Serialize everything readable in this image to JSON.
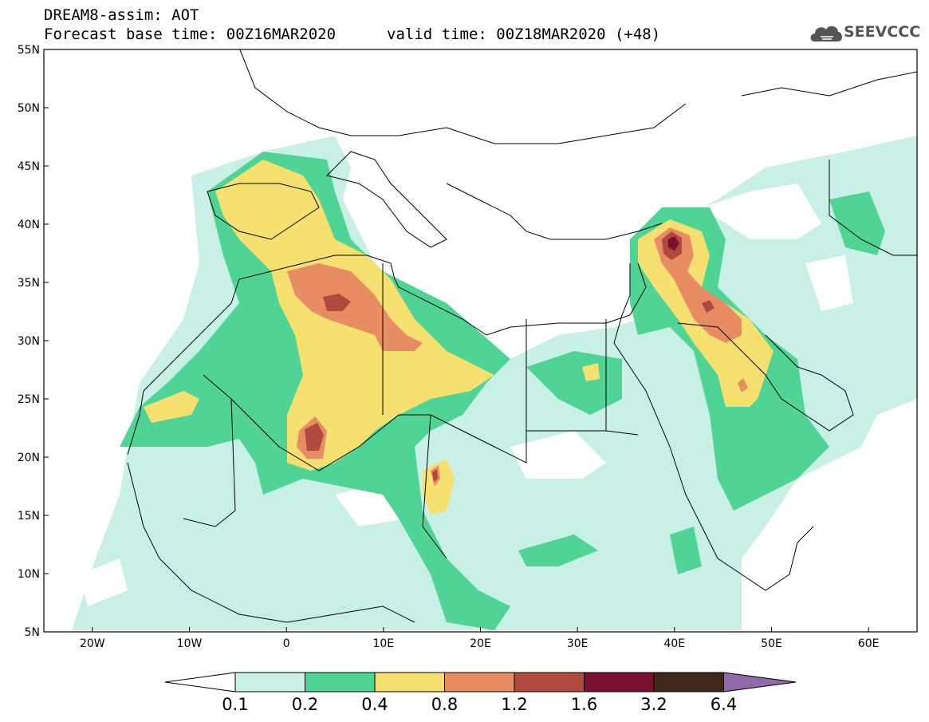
{
  "header": {
    "title_line1": "DREAM8-assim: AOT",
    "title_line2": "Forecast base time: 00Z16MAR2020",
    "valid_time": "valid time: 00Z18MAR2020 (+48)",
    "logo_text": "SEEVCCC",
    "logo_icon": "cloud-icon"
  },
  "map": {
    "lat_labels": [
      "55N",
      "50N",
      "45N",
      "40N",
      "35N",
      "30N",
      "25N",
      "20N",
      "15N",
      "10N",
      "5N"
    ],
    "lon_labels": [
      "20W",
      "10W",
      "0",
      "10E",
      "20E",
      "30E",
      "40E",
      "50E",
      "60E"
    ],
    "lat_range": [
      5,
      55
    ],
    "lon_range": [
      -25,
      65
    ],
    "grid": false
  },
  "legend": {
    "levels": [
      "0.1",
      "0.2",
      "0.4",
      "0.8",
      "1.2",
      "1.6",
      "3.2",
      "6.4"
    ],
    "colors": [
      "#ffffff",
      "#c8f0e6",
      "#4fd496",
      "#f5e070",
      "#e88c64",
      "#b04a3e",
      "#7a1030",
      "#40281a",
      "#8e6aa8"
    ]
  }
}
